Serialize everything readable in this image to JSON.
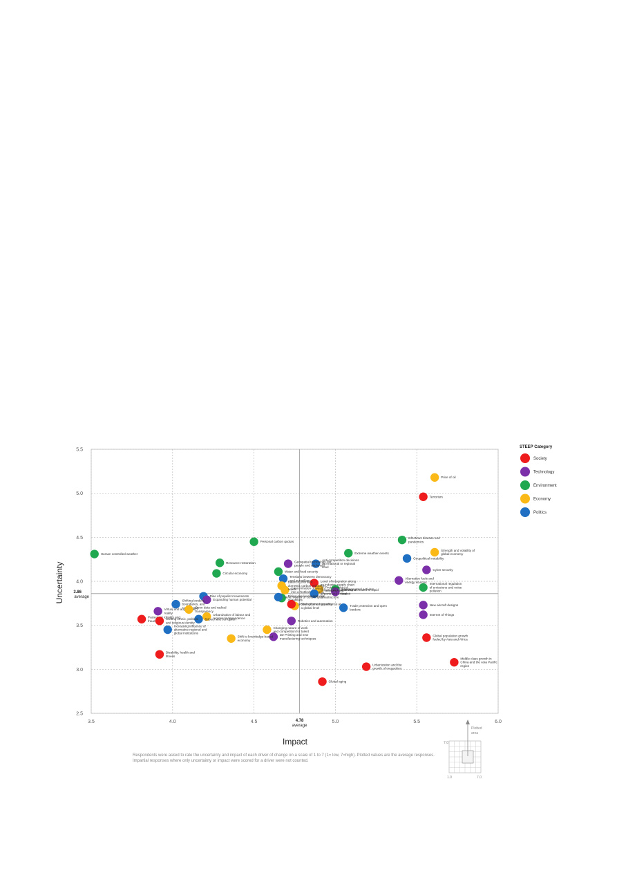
{
  "chart_data": {
    "type": "scatter",
    "xlabel": "Impact",
    "ylabel": "Uncertainty",
    "xlim": [
      3.5,
      6.0
    ],
    "ylim": [
      2.5,
      5.5
    ],
    "x_ticks": [
      "3.5",
      "4.0",
      "4.5",
      "5.0",
      "5.5",
      "6.0"
    ],
    "y_ticks": [
      "2.5",
      "3.0",
      "3.5",
      "4.0",
      "4.5",
      "5.0",
      "5.5"
    ],
    "grid": true,
    "averages": {
      "x": 4.78,
      "x_label": "4.78",
      "x_sub": "average",
      "y": 3.86,
      "y_label": "3.86",
      "y_sub": "average"
    },
    "legend": {
      "title": "STEEP Category",
      "placement": "right",
      "entries": [
        {
          "name": "Society",
          "color": "#ee1c1c"
        },
        {
          "name": "Technology",
          "color": "#7b2fa8"
        },
        {
          "name": "Environment",
          "color": "#1fa84f"
        },
        {
          "name": "Economy",
          "color": "#fbb917"
        },
        {
          "name": "Politics",
          "color": "#1f6fc2"
        }
      ]
    },
    "points": [
      {
        "label": "Price of oil",
        "cat": "Economy",
        "x": 5.61,
        "y": 5.18
      },
      {
        "label": "Terrorism",
        "cat": "Society",
        "x": 5.54,
        "y": 4.96
      },
      {
        "label": "Infectious disease and pandemics",
        "cat": "Environment",
        "x": 5.41,
        "y": 4.47
      },
      {
        "label": "Strength and volatility of global economy",
        "cat": "Economy",
        "x": 5.61,
        "y": 4.33
      },
      {
        "label": "Geopolitical instability",
        "cat": "Politics",
        "x": 5.44,
        "y": 4.26
      },
      {
        "label": "Cyber security",
        "cat": "Technology",
        "x": 5.56,
        "y": 4.13
      },
      {
        "label": "Alternative fuels and energy sources",
        "cat": "Technology",
        "x": 5.39,
        "y": 4.01
      },
      {
        "label": "International regulation of emissions and noise pollution",
        "cat": "Environment",
        "x": 5.54,
        "y": 3.93
      },
      {
        "label": "New aircraft designs",
        "cat": "Technology",
        "x": 5.54,
        "y": 3.73
      },
      {
        "label": "Internet of Things",
        "cat": "Technology",
        "x": 5.54,
        "y": 3.62
      },
      {
        "label": "Global population growth fueled by Asia and Africa",
        "cat": "Society",
        "x": 5.56,
        "y": 3.36
      },
      {
        "label": "Middle class growth in China and the Asia Pacific region",
        "cat": "Society",
        "x": 5.73,
        "y": 3.08
      },
      {
        "label": "Urbanization and the growth of megacities",
        "cat": "Society",
        "x": 5.19,
        "y": 3.03
      },
      {
        "label": "Global aging",
        "cat": "Society",
        "x": 4.92,
        "y": 2.86
      },
      {
        "label": "Extreme weather events",
        "cat": "Environment",
        "x": 5.08,
        "y": 4.32
      },
      {
        "label": "Anti-competition decisions at a national or regional level",
        "cat": "Politics",
        "x": 4.88,
        "y": 4.2
      },
      {
        "label": "Geospatial technology (for people and airplanes)",
        "cat": "Technology",
        "x": 4.71,
        "y": 4.2
      },
      {
        "label": "Personal carbon quotas",
        "cat": "Environment",
        "x": 4.5,
        "y": 4.45
      },
      {
        "label": "Water and food security",
        "cat": "Environment",
        "x": 4.65,
        "y": 4.11
      },
      {
        "label": "Tensions between democracy and surveillance",
        "cat": "Politics",
        "x": 4.68,
        "y": 4.03
      },
      {
        "label": "Level of integration along an industry supply chain",
        "cat": "Society",
        "x": 4.87,
        "y": 3.98
      },
      {
        "label": "Environmental activism",
        "cat": "Environment",
        "x": 5.0,
        "y": 3.91
      },
      {
        "label": "Alternative modes of rapid transit",
        "cat": "Technology",
        "x": 5.0,
        "y": 3.88
      },
      {
        "label": "Protectionism of infrastructure",
        "cat": "Economy",
        "x": 4.9,
        "y": 3.91
      },
      {
        "label": "Concentration of wealth into a 'bottled' economy",
        "cat": "Economy",
        "x": 4.69,
        "y": 3.9
      },
      {
        "label": "Balance priorities: domestic carbon reduction needs",
        "cat": "Economy",
        "x": 4.67,
        "y": 3.95
      },
      {
        "label": "Government ownership of airports and critical infrastructure",
        "cat": "Politics",
        "x": 4.87,
        "y": 3.86
      },
      {
        "label": "Rising sea levels and loss of habitats",
        "cat": "Environment",
        "x": 4.67,
        "y": 3.81
      },
      {
        "label": "Resource restoration",
        "cat": "Environment",
        "x": 4.29,
        "y": 4.21
      },
      {
        "label": "Circular economy",
        "cat": "Environment",
        "x": 4.27,
        "y": 4.09
      },
      {
        "label": "Human controlled weather",
        "cat": "Environment",
        "x": 3.52,
        "y": 4.31
      },
      {
        "label": "New models of consumption",
        "cat": "Politics",
        "x": 4.65,
        "y": 3.82
      },
      {
        "label": "Strengthened governance at a global level",
        "cat": "Economy",
        "x": 4.75,
        "y": 3.72
      },
      {
        "label": "Global income inequality",
        "cat": "Society",
        "x": 4.73,
        "y": 3.74
      },
      {
        "label": "Trade protection and open borders",
        "cat": "Politics",
        "x": 5.05,
        "y": 3.7
      },
      {
        "label": "Robotics and automation",
        "cat": "Technology",
        "x": 4.73,
        "y": 3.55
      },
      {
        "label": "Rise of populist movements",
        "cat": "Politics",
        "x": 4.19,
        "y": 3.83
      },
      {
        "label": "Expanding human potential",
        "cat": "Technology",
        "x": 4.21,
        "y": 3.79
      },
      {
        "label": "Shifting borders, boundaries, and sovereignty",
        "cat": "Politics",
        "x": 4.02,
        "y": 3.74
      },
      {
        "label": "Virtual and augmented reality",
        "cat": "Technology",
        "x": 3.91,
        "y": 3.66
      },
      {
        "label": "Open data and radical transparency",
        "cat": "Economy",
        "x": 4.1,
        "y": 3.68
      },
      {
        "label": "Urbanization of labour and regional independence",
        "cat": "Economy",
        "x": 4.21,
        "y": 3.6
      },
      {
        "label": "Bribery and corruption",
        "cat": "Politics",
        "x": 4.16,
        "y": 3.57
      },
      {
        "label": "Passenger identity and fraud",
        "cat": "Society",
        "x": 3.81,
        "y": 3.57
      },
      {
        "label": "Shifting ethnic, political and religious identity",
        "cat": "Society",
        "x": 3.92,
        "y": 3.55
      },
      {
        "label": "Increasing influence of alternative regional and global institutions",
        "cat": "Politics",
        "x": 3.97,
        "y": 3.45
      },
      {
        "label": "Changing nature of work and competition for talent",
        "cat": "Economy",
        "x": 4.58,
        "y": 3.45
      },
      {
        "label": "3D Printing and new manufacturing techniques",
        "cat": "Technology",
        "x": 4.62,
        "y": 3.37
      },
      {
        "label": "Shift to knowledge-based economy",
        "cat": "Economy",
        "x": 4.36,
        "y": 3.35
      },
      {
        "label": "Disability, health and fitness",
        "cat": "Society",
        "x": 3.92,
        "y": 3.17
      }
    ]
  },
  "footnote": "Respondents were asked to rate the uncertainty and impact of each driver of change on a scale of 1 to 7 (1= low, 7=high). Plotted values are the average responses. Impartial responses where only uncertainty or impact were scored for a driver were not counted.",
  "inset": {
    "label": "Plotted area",
    "y_label": "7.0",
    "x_start": "1.0",
    "x_end": "7.0"
  }
}
